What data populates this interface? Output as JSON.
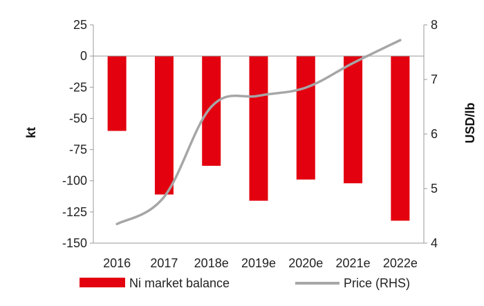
{
  "chart_data": {
    "type": "bar",
    "categories": [
      "2016",
      "2017",
      "2018e",
      "2019e",
      "2020e",
      "2021e",
      "2022e"
    ],
    "series": [
      {
        "name": "Ni market balance",
        "type": "bar",
        "axis": "left",
        "color": "#E3000F",
        "values": [
          -60,
          -111,
          -88,
          -116,
          -99,
          -102,
          -132
        ]
      },
      {
        "name": "Price (RHS)",
        "type": "line",
        "axis": "right",
        "color": "#A6A6A6",
        "values": [
          4.35,
          4.85,
          6.5,
          6.7,
          6.85,
          7.3,
          7.72
        ]
      }
    ],
    "ylabel": "kt",
    "y2label": "USD/lb",
    "ylim": [
      -150,
      25
    ],
    "y2lim": [
      4,
      8
    ],
    "yticks": [
      "25",
      "0",
      "-25",
      "-50",
      "-75",
      "-100",
      "-125",
      "-150"
    ],
    "y2ticks": [
      "8",
      "7",
      "6",
      "5",
      "4"
    ],
    "grid": false,
    "legend_position": "bottom"
  }
}
